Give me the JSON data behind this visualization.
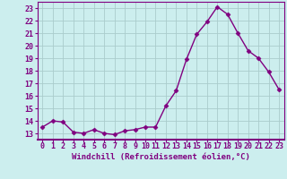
{
  "x": [
    0,
    1,
    2,
    3,
    4,
    5,
    6,
    7,
    8,
    9,
    10,
    11,
    12,
    13,
    14,
    15,
    16,
    17,
    18,
    19,
    20,
    21,
    22,
    23
  ],
  "y": [
    13.5,
    14.0,
    13.9,
    13.1,
    13.0,
    13.3,
    13.0,
    12.9,
    13.2,
    13.3,
    13.5,
    13.5,
    15.2,
    16.4,
    18.9,
    20.9,
    21.9,
    23.1,
    22.5,
    21.0,
    19.6,
    19.0,
    17.9,
    16.5
  ],
  "line_color": "#800080",
  "marker": "D",
  "markersize": 2.5,
  "bg_color": "#cceeee",
  "grid_color": "#aacccc",
  "xlabel": "Windchill (Refroidissement éolien,°C)",
  "xlim": [
    -0.5,
    23.5
  ],
  "ylim": [
    12.5,
    23.5
  ],
  "yticks": [
    13,
    14,
    15,
    16,
    17,
    18,
    19,
    20,
    21,
    22,
    23
  ],
  "xticks": [
    0,
    1,
    2,
    3,
    4,
    5,
    6,
    7,
    8,
    9,
    10,
    11,
    12,
    13,
    14,
    15,
    16,
    17,
    18,
    19,
    20,
    21,
    22,
    23
  ],
  "tick_color": "#800080",
  "xlabel_fontsize": 6.5,
  "tick_fontsize": 6.0,
  "linewidth": 1.0
}
